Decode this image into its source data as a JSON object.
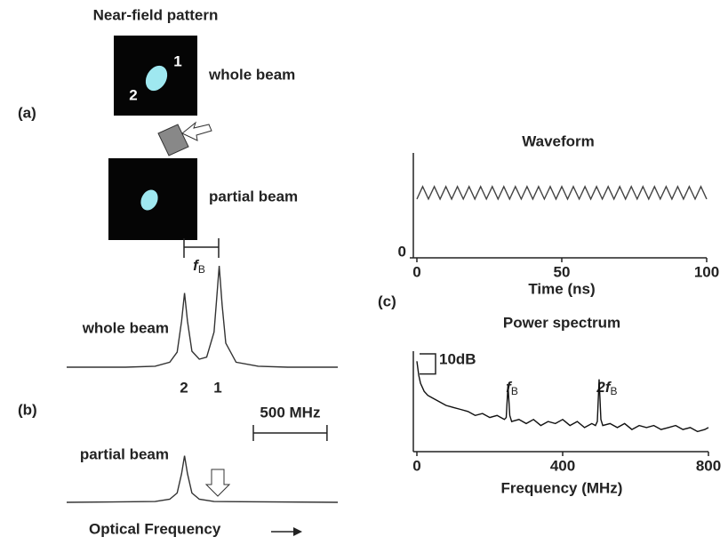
{
  "figure": {
    "near_field_title": "Near-field pattern",
    "panel_a": "(a)",
    "panel_b": "(b)",
    "panel_c": "(c)",
    "spot_1": "1",
    "spot_2": "2",
    "whole_beam": "whole beam",
    "partial_beam": "partial beam"
  },
  "chart_data": [
    {
      "type": "line",
      "label": "whole beam",
      "color": "#333",
      "x": [
        0,
        400,
        600,
        700,
        750,
        780,
        800,
        820,
        850,
        900,
        950,
        1000,
        1015,
        1035,
        1055,
        1080,
        1150,
        1300,
        1500,
        1840
      ],
      "values": [
        0,
        0,
        0.01,
        0.05,
        0.15,
        0.46,
        0.74,
        0.46,
        0.16,
        0.08,
        0.1,
        0.35,
        0.62,
        1.01,
        0.62,
        0.24,
        0.05,
        0.01,
        0,
        0
      ],
      "xlim": [
        0,
        1840
      ],
      "ylim": [
        0,
        1.1
      ],
      "peak_labels": [
        "2",
        "1"
      ],
      "bracket_label": {
        "text": "f",
        "sub": "B"
      },
      "scale_bar": {
        "value": 500,
        "label": "500 MHz"
      }
    },
    {
      "type": "line",
      "label": "partial beam",
      "color": "#333",
      "x": [
        0,
        600,
        700,
        750,
        780,
        800,
        820,
        850,
        900,
        1000,
        1840
      ],
      "values": [
        0,
        0.01,
        0.04,
        0.12,
        0.37,
        0.6,
        0.37,
        0.12,
        0.04,
        0.01,
        0
      ],
      "xlim": [
        0,
        1840
      ],
      "ylim": [
        0,
        1.1
      ],
      "x_label": "Optical Frequency"
    },
    {
      "type": "line",
      "title": "Waveform",
      "x_label": "Time (ns)",
      "color": "#444",
      "x": [
        0,
        2,
        4,
        6,
        8,
        10,
        12,
        14,
        16,
        18,
        20,
        22,
        24,
        26,
        28,
        30,
        32,
        34,
        36,
        38,
        40,
        42,
        44,
        46,
        48,
        50,
        52,
        54,
        56,
        58,
        60,
        62,
        64,
        66,
        68,
        70,
        72,
        74,
        76,
        78,
        80,
        82,
        84,
        86,
        88,
        90,
        92,
        94,
        96,
        98,
        100
      ],
      "values": [
        0.56,
        0.68,
        0.56,
        0.68,
        0.56,
        0.68,
        0.56,
        0.68,
        0.56,
        0.68,
        0.56,
        0.68,
        0.56,
        0.68,
        0.56,
        0.68,
        0.56,
        0.68,
        0.56,
        0.68,
        0.56,
        0.68,
        0.56,
        0.68,
        0.56,
        0.68,
        0.56,
        0.68,
        0.56,
        0.68,
        0.56,
        0.68,
        0.56,
        0.68,
        0.56,
        0.68,
        0.56,
        0.68,
        0.56,
        0.68,
        0.56,
        0.68,
        0.56,
        0.68,
        0.56,
        0.68,
        0.56,
        0.68,
        0.56,
        0.68,
        0.56
      ],
      "xlim": [
        0,
        100
      ],
      "ylim": [
        0,
        1
      ],
      "xticks": [
        0,
        50,
        100
      ],
      "yticks": [
        0
      ]
    },
    {
      "type": "line",
      "title": "Power spectrum",
      "x_label": "Frequency (MHz)",
      "color": "#111",
      "x": [
        0,
        5,
        10,
        20,
        30,
        40,
        60,
        80,
        100,
        120,
        140,
        160,
        180,
        200,
        220,
        240,
        245,
        250,
        255,
        260,
        280,
        300,
        320,
        340,
        360,
        380,
        400,
        420,
        440,
        460,
        480,
        490,
        495,
        500,
        505,
        510,
        530,
        550,
        570,
        590,
        610,
        630,
        650,
        670,
        690,
        710,
        730,
        750,
        770,
        790,
        800
      ],
      "values": [
        45,
        38,
        34,
        30,
        28,
        27,
        25,
        23,
        22,
        21,
        20,
        18,
        19,
        17,
        18,
        16,
        17,
        33,
        18,
        15,
        16,
        14,
        16,
        13,
        15,
        14,
        16,
        13,
        15,
        12,
        14,
        13,
        15,
        36,
        16,
        13,
        14,
        12,
        14,
        11,
        13,
        12,
        13,
        11,
        12,
        13,
        11,
        12,
        10,
        11,
        12
      ],
      "xlim": [
        0,
        800
      ],
      "ylim": [
        0,
        50
      ],
      "xticks": [
        0,
        400,
        800
      ],
      "annotations": [
        {
          "text": "f",
          "sub": "B"
        },
        {
          "text": "2f",
          "sub": "B"
        }
      ],
      "scale_bar": {
        "value": 10,
        "label": "10dB"
      }
    }
  ]
}
